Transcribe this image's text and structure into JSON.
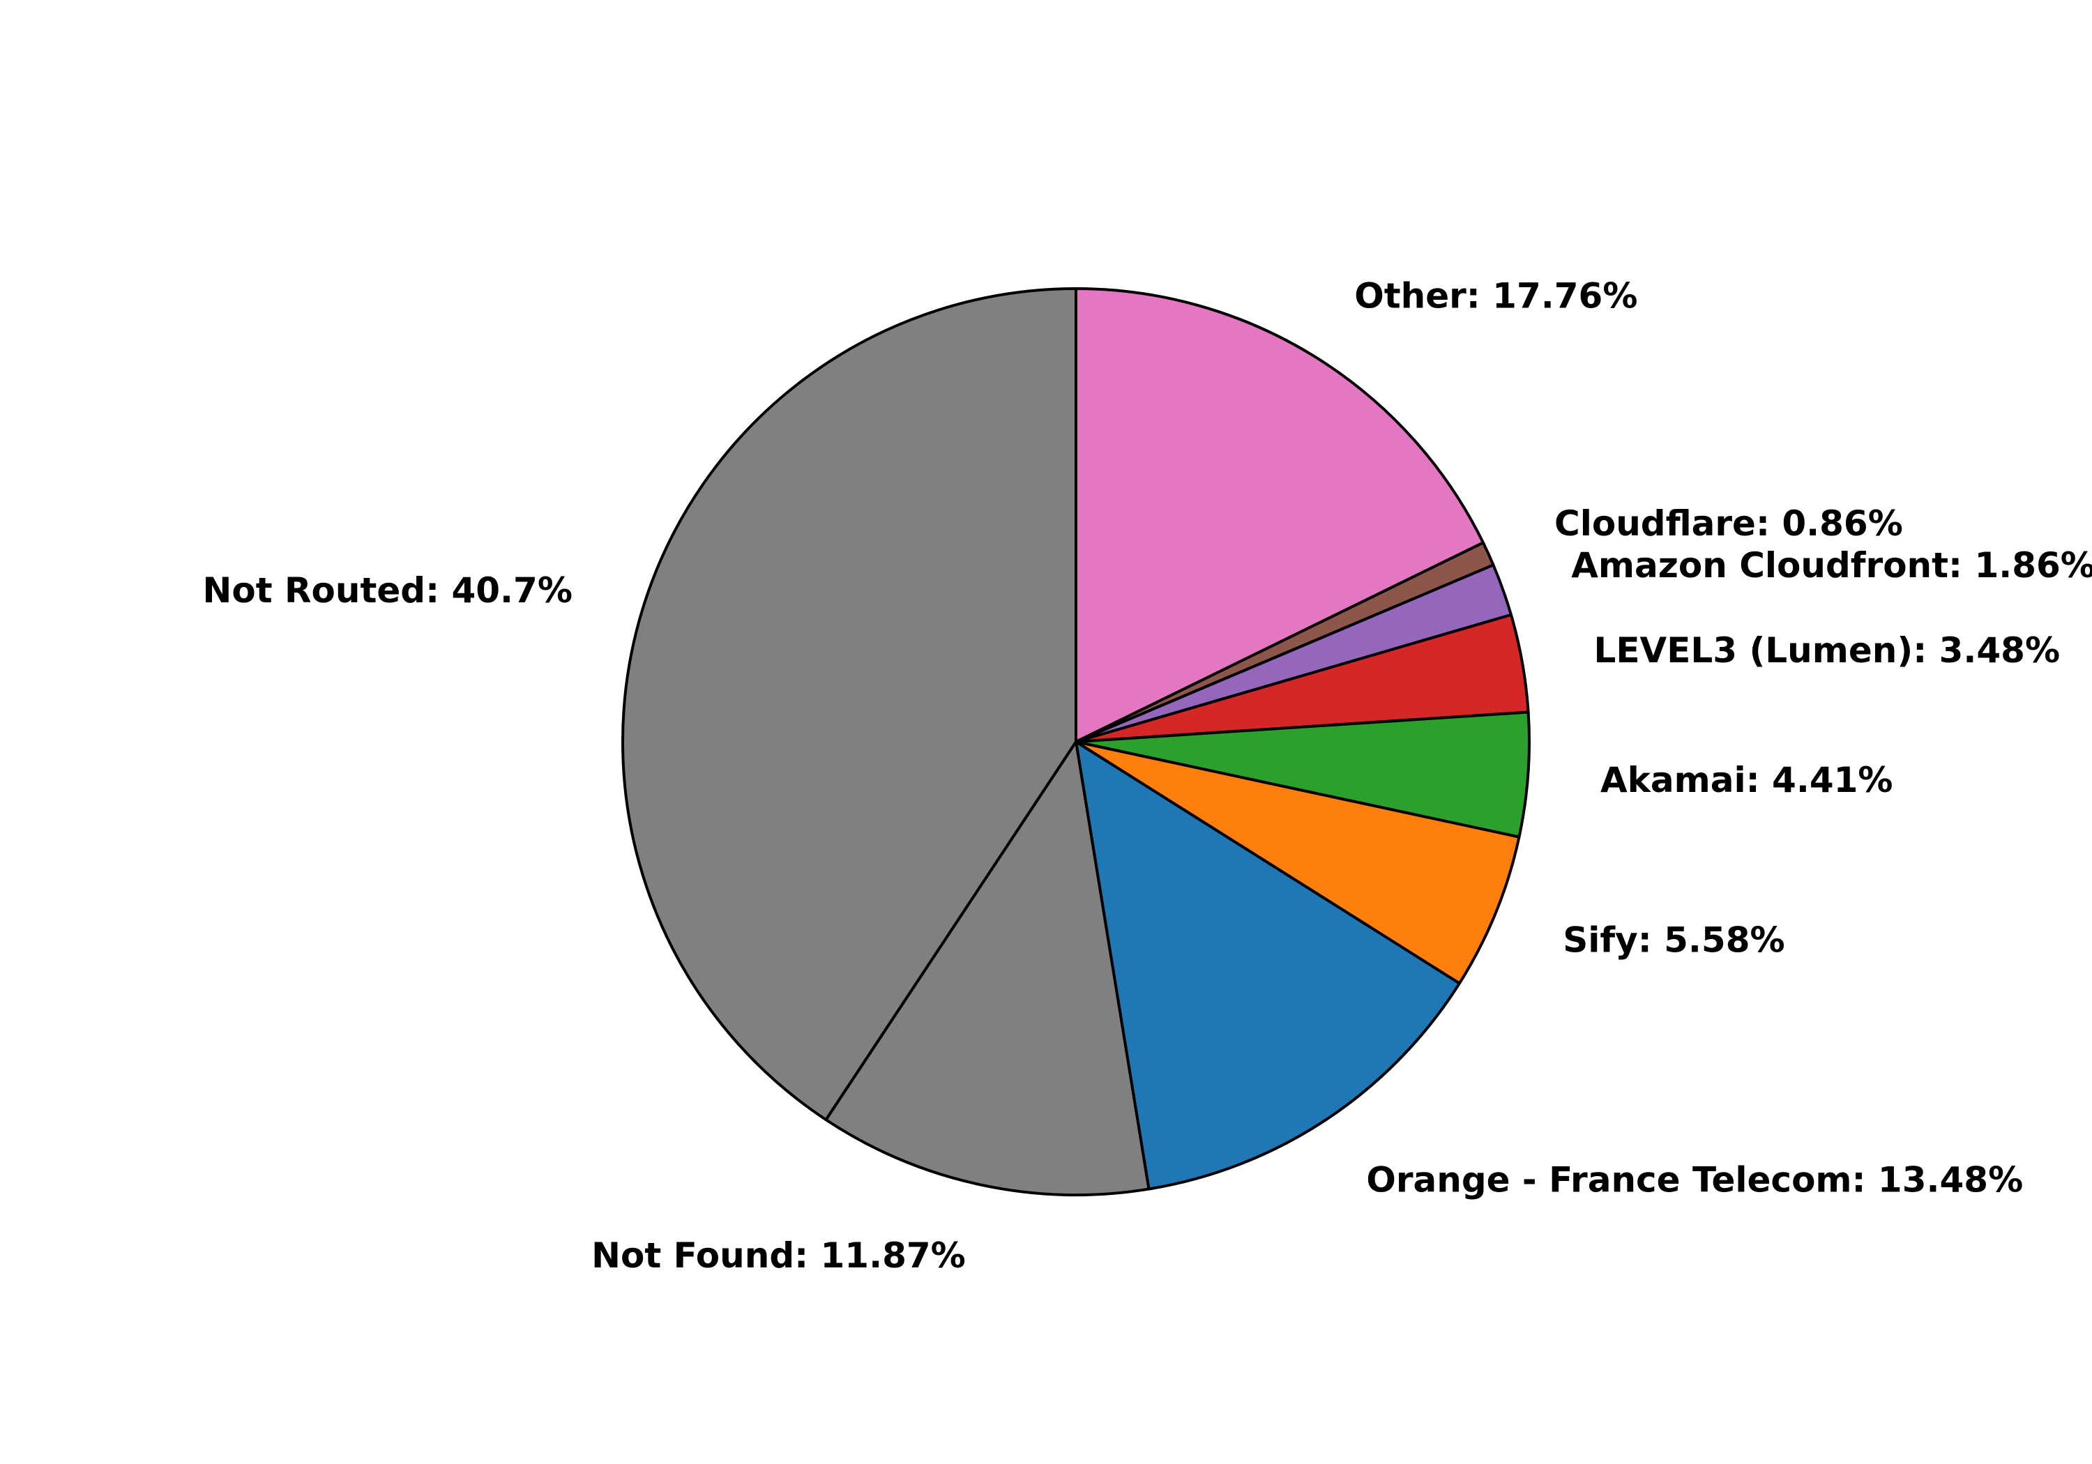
{
  "chart_data": {
    "type": "pie",
    "title": "",
    "start_angle_deg": 90,
    "direction": "clockwise",
    "edge_color": "#000000",
    "slices": [
      {
        "label": "Other",
        "value": 17.76,
        "display": "Other: 17.76%",
        "color": "#e377c2"
      },
      {
        "label": "Cloudflare",
        "value": 0.86,
        "display": "Cloudflare: 0.86%",
        "color": "#8c564b"
      },
      {
        "label": "Amazon Cloudfront",
        "value": 1.86,
        "display": "Amazon Cloudfront: 1.86%",
        "color": "#9467bd"
      },
      {
        "label": "LEVEL3 (Lumen)",
        "value": 3.48,
        "display": "LEVEL3 (Lumen): 3.48%",
        "color": "#d62728"
      },
      {
        "label": "Akamai",
        "value": 4.41,
        "display": "Akamai: 4.41%",
        "color": "#2ca02c"
      },
      {
        "label": "Sify",
        "value": 5.58,
        "display": "Sify: 5.58%",
        "color": "#ff7f0e"
      },
      {
        "label": "Orange - France Telecom",
        "value": 13.48,
        "display": "Orange - France Telecom: 13.48%",
        "color": "#1f77b4"
      },
      {
        "label": "Not Found",
        "value": 11.87,
        "display": "Not Found: 11.87%",
        "color": "#808080"
      },
      {
        "label": "Not Routed",
        "value": 40.7,
        "display": "Not Routed: 40.7%",
        "color": "#808080"
      }
    ]
  }
}
